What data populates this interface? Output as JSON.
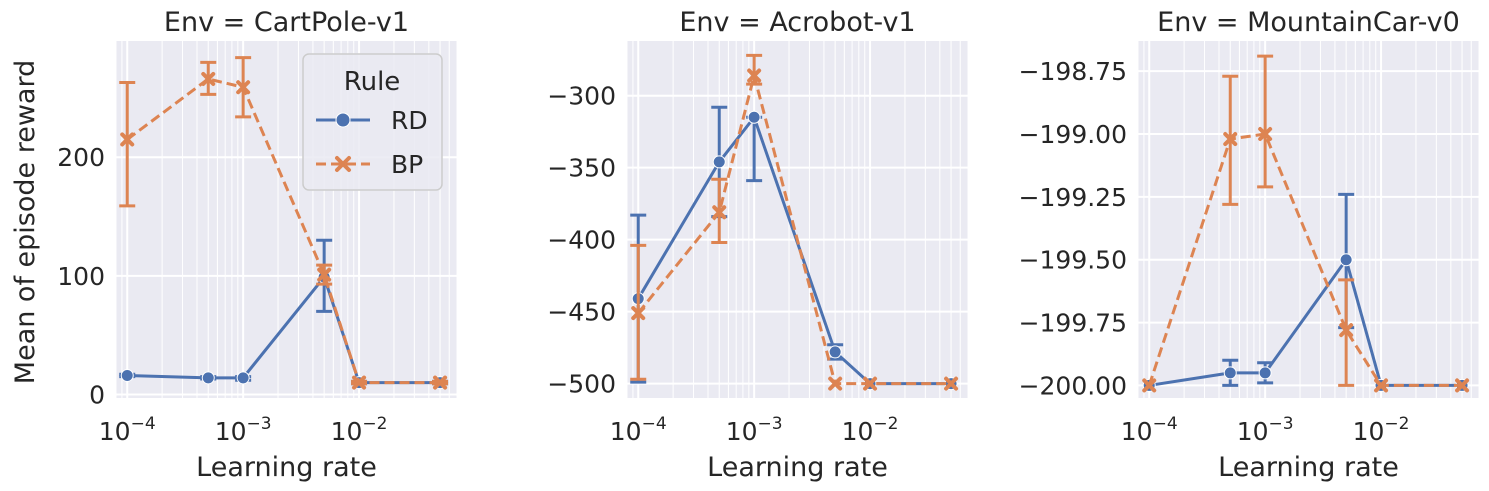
{
  "figure": {
    "ylabel": "Mean of episode reward",
    "xlabel": "Learning rate"
  },
  "legend": {
    "title": "Rule",
    "entries": [
      {
        "name": "RD",
        "color": "#4c72b0",
        "marker": "circle",
        "dash": "solid"
      },
      {
        "name": "BP",
        "color": "#dd8452",
        "marker": "x",
        "dash": "dashed"
      }
    ],
    "placement": "upper right of first panel"
  },
  "chart_data": [
    {
      "type": "line",
      "title": "Env = CartPole-v1",
      "xlabel": "Learning rate",
      "ylabel": "Mean of episode reward",
      "xscale": "log",
      "xlim": [
        8e-05,
        0.07
      ],
      "ylim": [
        -3,
        298
      ],
      "grid": true,
      "xticks": [
        {
          "value": 0.0001,
          "base": "10",
          "exp": "−4"
        },
        {
          "value": 0.001,
          "base": "10",
          "exp": "−3"
        },
        {
          "value": 0.01,
          "base": "10",
          "exp": "−2"
        }
      ],
      "yticks": [
        {
          "value": 0,
          "label": "0"
        },
        {
          "value": 100,
          "label": "100"
        },
        {
          "value": 200,
          "label": "200"
        }
      ],
      "series": [
        {
          "name": "RD",
          "x": [
            0.0001,
            0.0005,
            0.001,
            0.005,
            0.01,
            0.05
          ],
          "y": [
            16,
            14,
            14,
            99,
            10,
            10
          ],
          "lo": [
            15,
            13,
            12,
            70,
            9,
            9
          ],
          "hi": [
            17,
            15,
            15,
            130,
            11,
            11
          ]
        },
        {
          "name": "BP",
          "x": [
            0.0001,
            0.0005,
            0.001,
            0.005,
            0.01,
            0.05
          ],
          "y": [
            215,
            266,
            259,
            101,
            10,
            10
          ],
          "lo": [
            159,
            253,
            234,
            93,
            9,
            9
          ],
          "hi": [
            263,
            280,
            284,
            109,
            11,
            11
          ]
        }
      ]
    },
    {
      "type": "line",
      "title": "Env = Acrobot-v1",
      "xlabel": "Learning rate",
      "xscale": "log",
      "xlim": [
        8e-05,
        0.07
      ],
      "ylim": [
        -510,
        -262
      ],
      "grid": true,
      "xticks": [
        {
          "value": 0.0001,
          "base": "10",
          "exp": "−4"
        },
        {
          "value": 0.001,
          "base": "10",
          "exp": "−3"
        },
        {
          "value": 0.01,
          "base": "10",
          "exp": "−2"
        }
      ],
      "yticks": [
        {
          "value": -500,
          "label": "−500"
        },
        {
          "value": -450,
          "label": "−450"
        },
        {
          "value": -400,
          "label": "−400"
        },
        {
          "value": -350,
          "label": "−350"
        },
        {
          "value": -300,
          "label": "−300"
        }
      ],
      "series": [
        {
          "name": "RD",
          "x": [
            0.0001,
            0.0005,
            0.001,
            0.005,
            0.01,
            0.05
          ],
          "y": [
            -441,
            -346,
            -315,
            -478,
            -500,
            -500
          ],
          "lo": [
            -499,
            -384,
            -359,
            -483,
            -500,
            -500
          ],
          "hi": [
            -383,
            -308,
            -315,
            -473,
            -500,
            -500
          ]
        },
        {
          "name": "BP",
          "x": [
            0.0001,
            0.0005,
            0.001,
            0.005,
            0.01,
            0.05
          ],
          "y": [
            -451,
            -381,
            -286,
            -500,
            -500,
            -500
          ],
          "lo": [
            -497,
            -402,
            -292,
            -500,
            -500,
            -500
          ],
          "hi": [
            -404,
            -358,
            -272,
            -500,
            -500,
            -500
          ]
        }
      ]
    },
    {
      "type": "line",
      "title": "Env = MountainCar-v0",
      "xlabel": "Learning rate",
      "xscale": "log",
      "xlim": [
        8e-05,
        0.07
      ],
      "ylim": [
        -200.05,
        -198.63
      ],
      "grid": true,
      "xticks": [
        {
          "value": 0.0001,
          "base": "10",
          "exp": "−4"
        },
        {
          "value": 0.001,
          "base": "10",
          "exp": "−3"
        },
        {
          "value": 0.01,
          "base": "10",
          "exp": "−2"
        }
      ],
      "yticks": [
        {
          "value": -200.0,
          "label": "−200.00"
        },
        {
          "value": -199.75,
          "label": "−199.75"
        },
        {
          "value": -199.5,
          "label": "−199.50"
        },
        {
          "value": -199.25,
          "label": "−199.25"
        },
        {
          "value": -199.0,
          "label": "−199.00"
        },
        {
          "value": -198.75,
          "label": "−198.75"
        }
      ],
      "series": [
        {
          "name": "RD",
          "x": [
            0.0001,
            0.0005,
            0.001,
            0.005,
            0.01,
            0.05
          ],
          "y": [
            -200.0,
            -199.95,
            -199.95,
            -199.5,
            -200.0,
            -200.0
          ],
          "lo": [
            -200.0,
            -200.0,
            -199.99,
            -199.77,
            -200.0,
            -200.0
          ],
          "hi": [
            -200.0,
            -199.9,
            -199.91,
            -199.24,
            -200.0,
            -200.0
          ]
        },
        {
          "name": "BP",
          "x": [
            0.0001,
            0.0005,
            0.001,
            0.005,
            0.01,
            0.05
          ],
          "y": [
            -200.0,
            -199.02,
            -199.0,
            -199.78,
            -200.0,
            -200.0
          ],
          "lo": [
            -200.0,
            -199.28,
            -199.21,
            -200.0,
            -200.0,
            -200.0
          ],
          "hi": [
            -200.0,
            -198.77,
            -198.69,
            -199.58,
            -200.0,
            -200.0
          ]
        }
      ]
    }
  ]
}
